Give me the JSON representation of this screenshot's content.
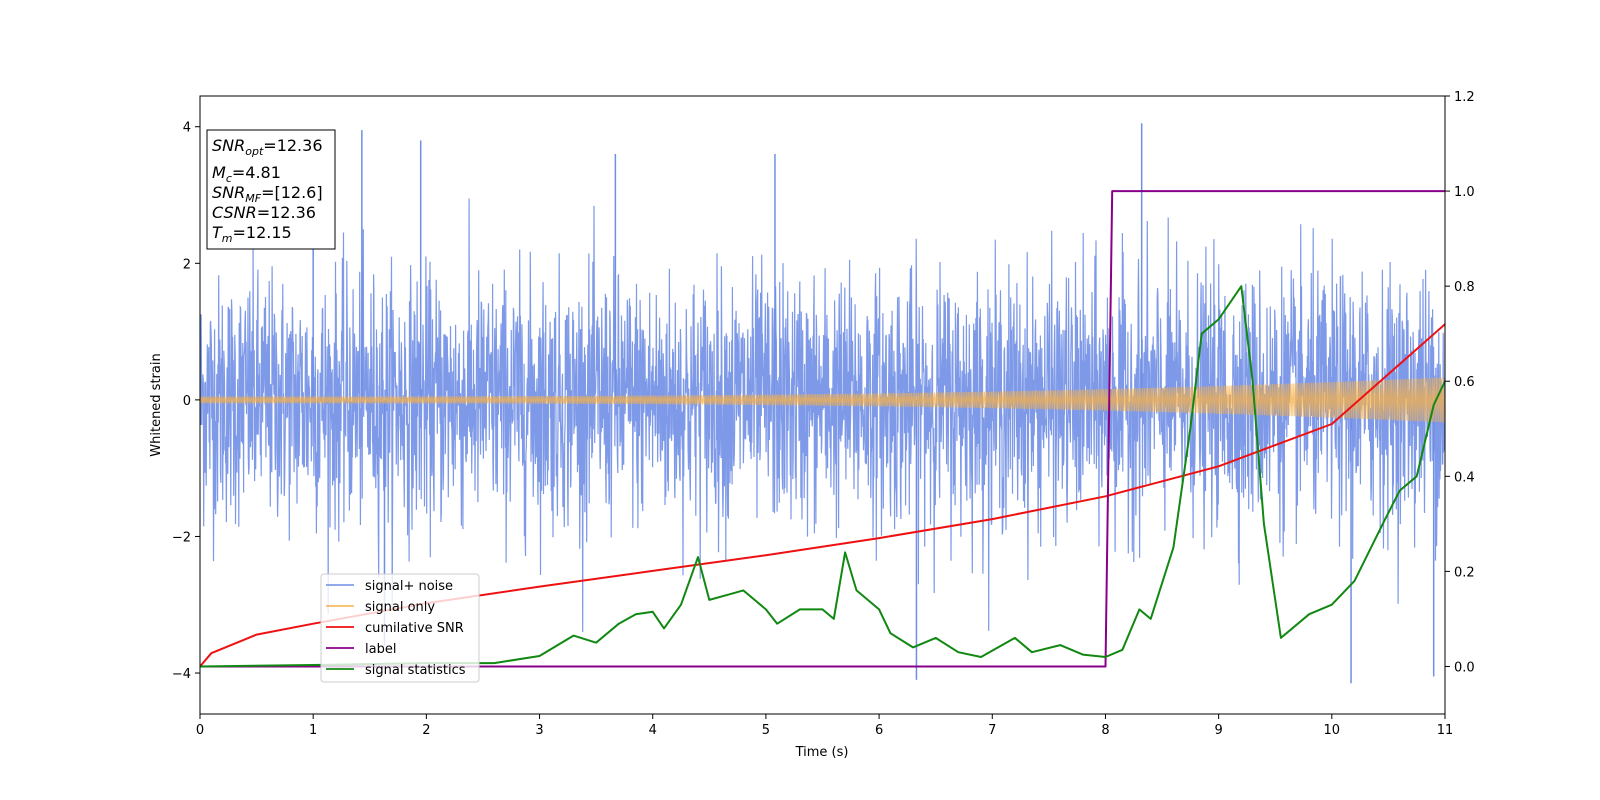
{
  "chart_data": {
    "type": "line",
    "xlabel": "Time (s)",
    "ylabel": "Whitened strain",
    "xlim": [
      0,
      11
    ],
    "ylim": [
      -4.6,
      4.45
    ],
    "y2lim": [
      -0.1,
      1.2
    ],
    "xticks": [
      "0",
      "1",
      "2",
      "3",
      "4",
      "5",
      "6",
      "7",
      "8",
      "9",
      "10",
      "11"
    ],
    "yticks": [
      "−4",
      "−2",
      "0",
      "2",
      "4"
    ],
    "y2ticks": [
      "0.0",
      "0.2",
      "0.4",
      "0.6",
      "0.8",
      "1.0",
      "1.2"
    ],
    "grid": false,
    "legend_position": "lower-left",
    "legend": [
      "signal+ noise",
      "signal only",
      "cumilative SNR",
      "label",
      "signal statistics"
    ],
    "colors": {
      "signal_noise": "#6f8ee6",
      "signal_only": "#f5b04a",
      "cumulative_snr": "#ee1111",
      "label": "#880088",
      "signal_statistics": "#118811"
    },
    "annotation": {
      "snr_opt_value": "=12.36",
      "mc_value": "=4.81",
      "snr_mf_value": "=[12.6]",
      "csnr_value": "=12.36",
      "tm_value": "=12.15"
    },
    "series": [
      {
        "name": "signal+ noise",
        "axis": "left",
        "description": "whitened noise band roughly within ±2.5 with spikes up to ±4",
        "envelope": 2.5,
        "peak_spikes": [
          {
            "x": 1.0,
            "y": 3.5
          },
          {
            "x": 1.43,
            "y": 3.95
          },
          {
            "x": 1.95,
            "y": 3.8
          },
          {
            "x": 3.67,
            "y": 3.6
          },
          {
            "x": 5.08,
            "y": 3.6
          },
          {
            "x": 8.32,
            "y": 4.05
          },
          {
            "x": 10.17,
            "y": -4.15
          },
          {
            "x": 10.9,
            "y": -4.05
          },
          {
            "x": 6.33,
            "y": -4.1
          },
          {
            "x": 1.63,
            "y": -3.6
          }
        ]
      },
      {
        "name": "signal only",
        "axis": "left",
        "description": "chirp with amplitude growing from about 0.05 to 0.33",
        "amplitude_start": 0.05,
        "amplitude_end": 0.33
      },
      {
        "name": "cumilative SNR",
        "axis": "right",
        "x": [
          0,
          0.1,
          0.5,
          1,
          2,
          3,
          4,
          5,
          6,
          7,
          8,
          9,
          10,
          11
        ],
        "y": [
          0,
          0.028,
          0.067,
          0.09,
          0.133,
          0.168,
          0.201,
          0.234,
          0.27,
          0.31,
          0.358,
          0.421,
          0.51,
          0.72
        ]
      },
      {
        "name": "label",
        "axis": "right",
        "x": [
          0,
          8.0,
          8.06,
          11
        ],
        "y": [
          0,
          0,
          1,
          1
        ]
      },
      {
        "name": "signal statistics",
        "axis": "right",
        "x": [
          0,
          1.0,
          2.0,
          2.6,
          3.0,
          3.3,
          3.5,
          3.7,
          3.85,
          4.0,
          4.1,
          4.25,
          4.4,
          4.5,
          4.65,
          4.8,
          5.0,
          5.1,
          5.3,
          5.5,
          5.6,
          5.7,
          5.8,
          6.0,
          6.1,
          6.3,
          6.5,
          6.7,
          6.9,
          7.2,
          7.35,
          7.6,
          7.8,
          8.0,
          8.15,
          8.3,
          8.4,
          8.6,
          8.75,
          8.85,
          9.0,
          9.2,
          9.3,
          9.4,
          9.55,
          9.8,
          10.0,
          10.2,
          10.45,
          10.6,
          10.75,
          10.9,
          11.0
        ],
        "y": [
          0,
          0.003,
          0.007,
          0.007,
          0.022,
          0.065,
          0.05,
          0.09,
          0.11,
          0.115,
          0.08,
          0.13,
          0.23,
          0.14,
          0.15,
          0.16,
          0.12,
          0.09,
          0.12,
          0.12,
          0.1,
          0.24,
          0.16,
          0.12,
          0.07,
          0.04,
          0.06,
          0.03,
          0.02,
          0.06,
          0.03,
          0.045,
          0.025,
          0.02,
          0.035,
          0.12,
          0.1,
          0.25,
          0.5,
          0.7,
          0.73,
          0.8,
          0.6,
          0.3,
          0.06,
          0.11,
          0.13,
          0.18,
          0.3,
          0.37,
          0.4,
          0.55,
          0.6
        ]
      }
    ]
  }
}
